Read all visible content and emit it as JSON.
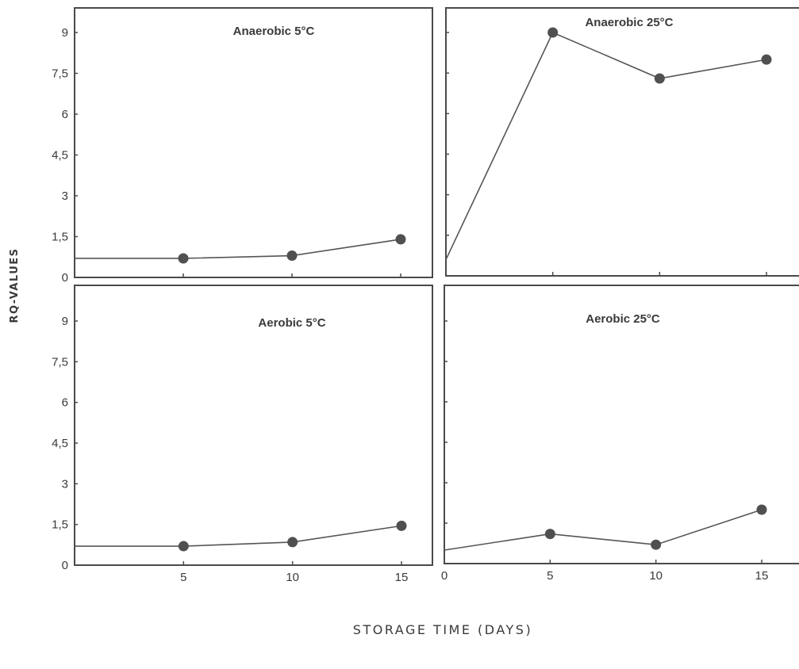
{
  "chart_data": [
    {
      "type": "line",
      "title": "Anaerobic 5°C",
      "x": [
        0,
        5,
        10,
        15
      ],
      "y": [
        0.7,
        0.7,
        0.8,
        1.4
      ],
      "xlim": [
        0,
        15
      ],
      "ylim": [
        0,
        10
      ],
      "yticks": [
        "0",
        "1,5",
        "3",
        "4,5",
        "6",
        "7,5",
        "9"
      ],
      "xticks": []
    },
    {
      "type": "line",
      "title": "Anaerobic 25°C",
      "x": [
        0,
        5,
        10,
        15
      ],
      "y": [
        0.6,
        9.0,
        7.3,
        8.0
      ],
      "xlim": [
        0,
        15
      ],
      "ylim": [
        0,
        10
      ],
      "yticks": [],
      "xticks": []
    },
    {
      "type": "line",
      "title": "Aerobic 5°C",
      "x": [
        0,
        5,
        10,
        15
      ],
      "y": [
        0.7,
        0.7,
        0.85,
        1.45
      ],
      "xlim": [
        0,
        15
      ],
      "ylim": [
        0,
        10
      ],
      "yticks": [
        "0",
        "1,5",
        "3",
        "4,5",
        "6",
        "7,5",
        "9"
      ],
      "xticks": [
        "5",
        "10",
        "15"
      ]
    },
    {
      "type": "line",
      "title": "Aerobic 25°C",
      "x": [
        0,
        5,
        10,
        15
      ],
      "y": [
        0.5,
        1.1,
        0.7,
        2.0
      ],
      "xlim": [
        0,
        15
      ],
      "ylim": [
        0,
        10
      ],
      "yticks": [],
      "xticks": [
        "0",
        "5",
        "10",
        "15"
      ]
    }
  ],
  "ylabel": "RQ-VALUES",
  "xlabel": "STORAGE TIME (DAYS)"
}
